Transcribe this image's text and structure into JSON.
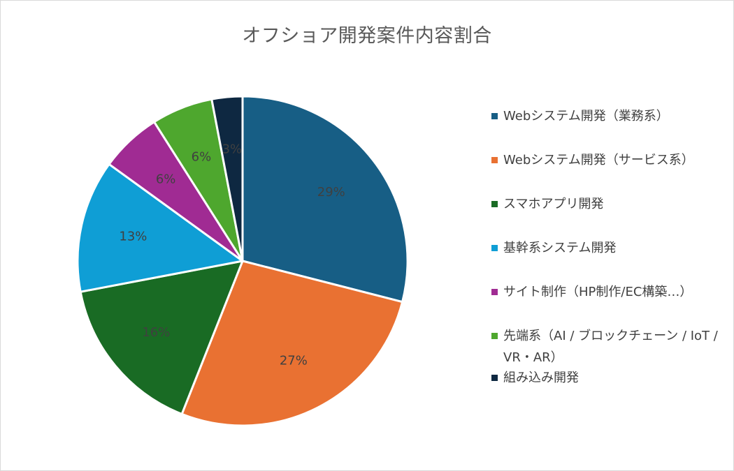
{
  "chart_data": {
    "type": "pie",
    "title": "オフショア開発案件内容割合",
    "categories": [
      "Webシステム開発（業務系）",
      "Webシステム開発（サービス系）",
      "スマホアプリ開発",
      "基幹系システム開発",
      "サイト制作（HP制作/EC構築…）",
      "先端系（AI / ブロックチェーン / IoT / VR・AR）",
      "組み込み開発"
    ],
    "values": [
      29,
      27,
      16,
      13,
      6,
      6,
      3
    ],
    "labels": [
      "29%",
      "27%",
      "16%",
      "13%",
      "6%",
      "6%",
      "3%"
    ],
    "colors": [
      "#175e85",
      "#e97132",
      "#196b24",
      "#0f9ed5",
      "#a02b93",
      "#4ea72e",
      "#0e2841"
    ],
    "legend_position": "right"
  }
}
